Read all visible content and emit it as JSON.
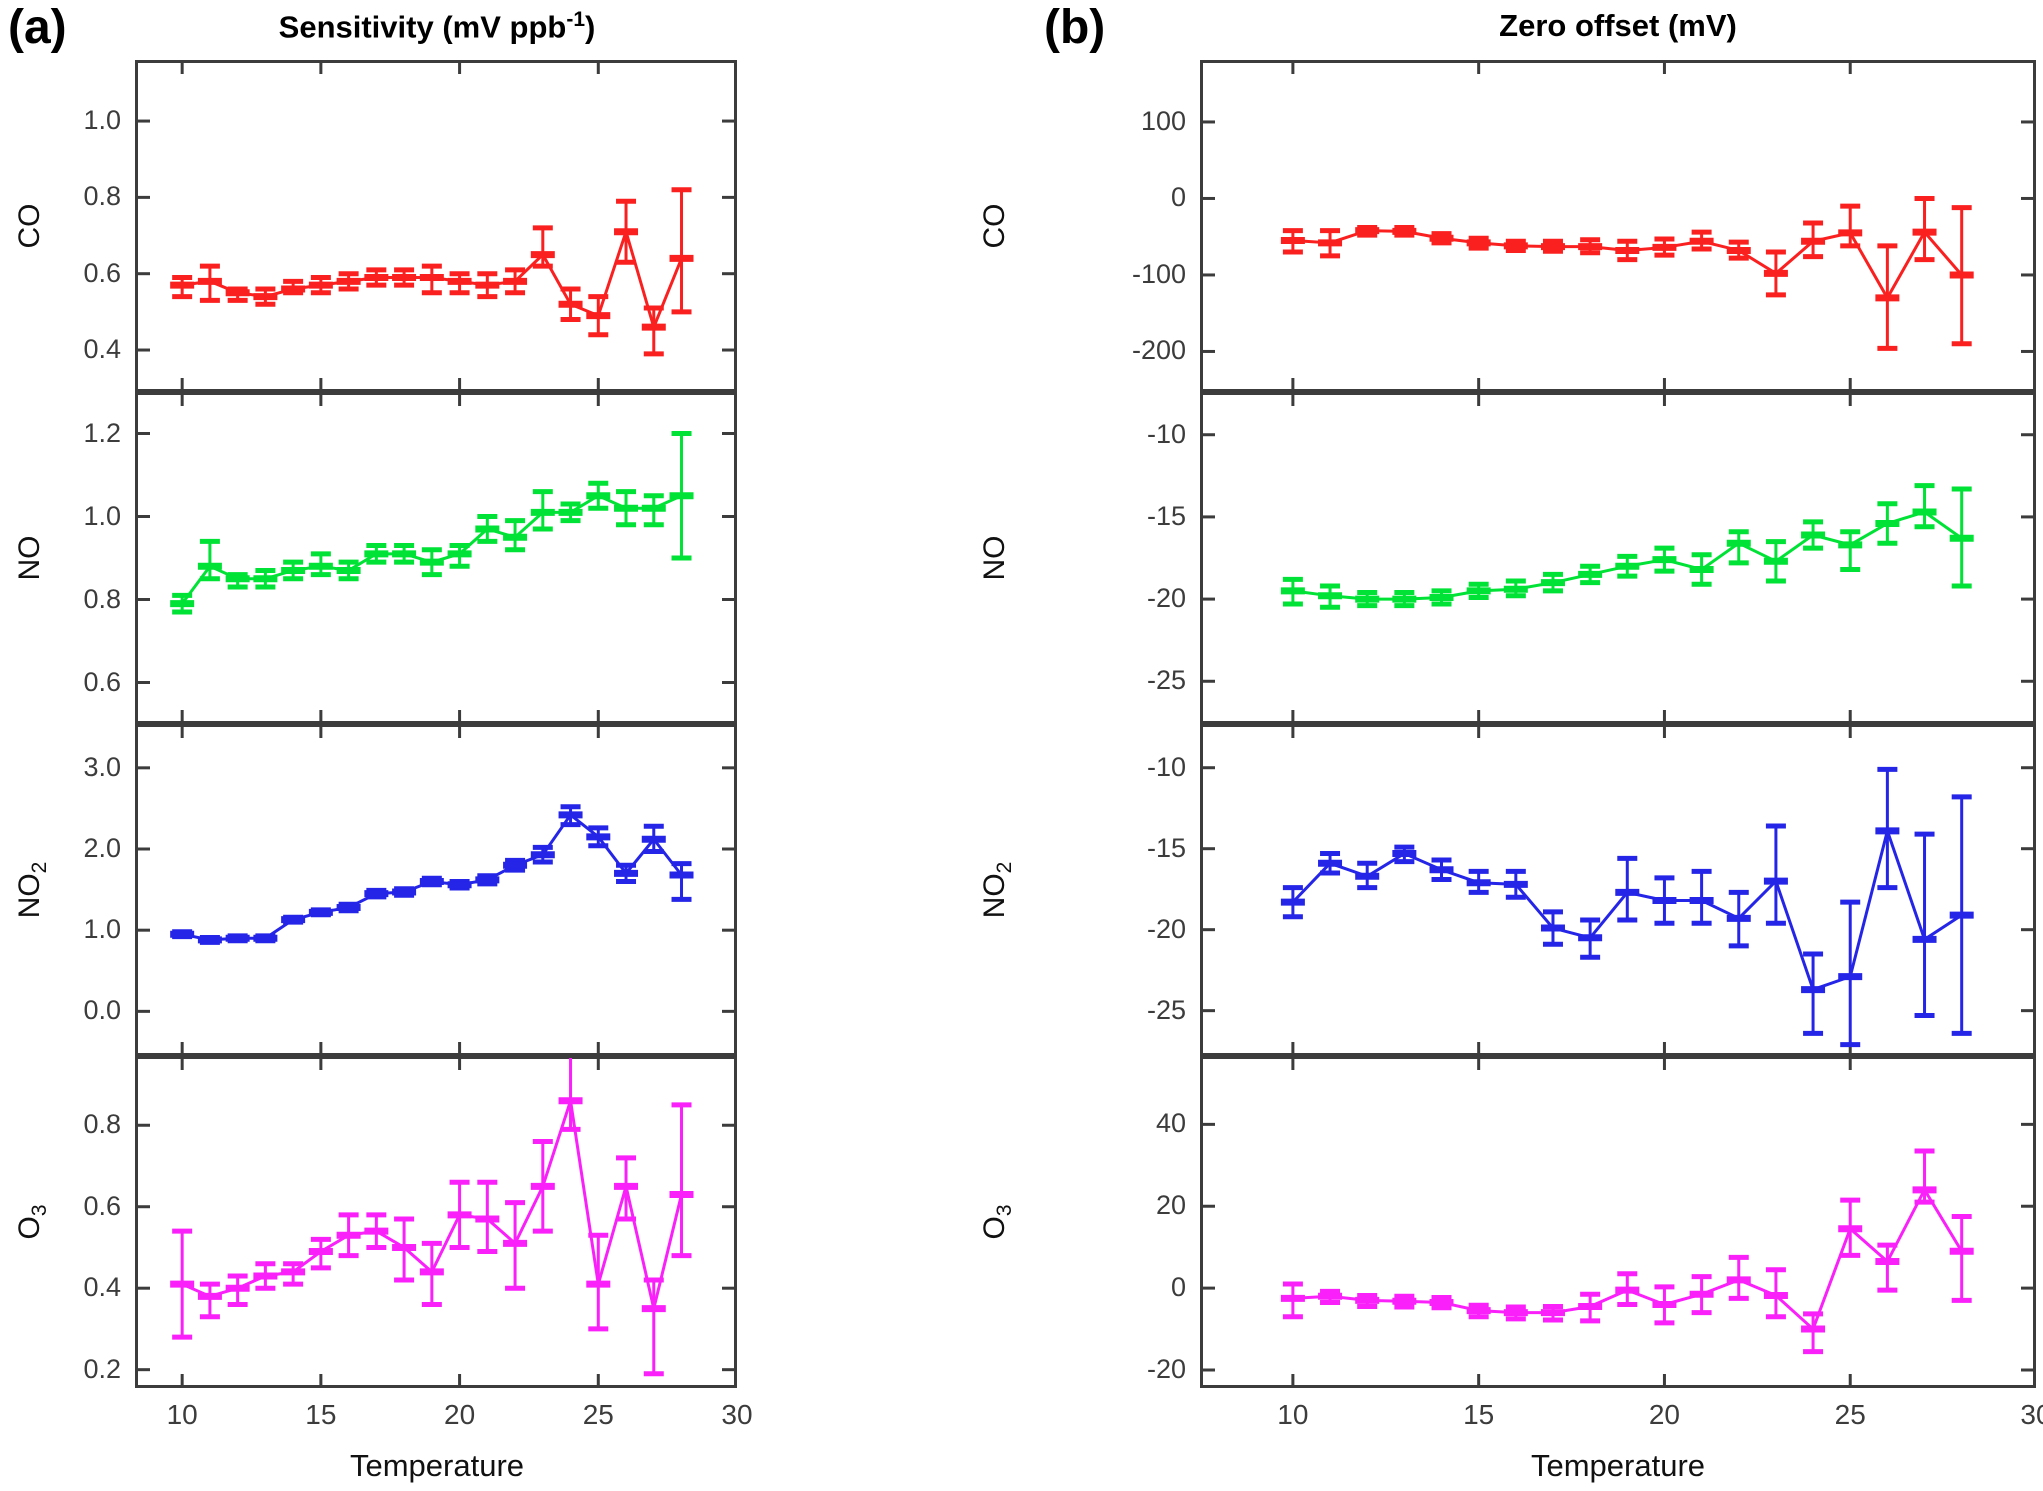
{
  "figure": {
    "background": "#ffffff",
    "x_axis": {
      "ticks": [
        10,
        15,
        20,
        25,
        30
      ],
      "tick_labels": [
        "10",
        "15",
        "20",
        "25",
        "30"
      ]
    }
  },
  "chart_data": [
    {
      "type": "line",
      "key": "sensitivity",
      "panel_label": "(a)",
      "title": {
        "main": "Sensitivity (mV ppb",
        "sup": "-1",
        "end": ")"
      },
      "xlabel": "Temperature",
      "x_values": [
        10,
        11,
        12,
        13,
        14,
        15,
        16,
        17,
        18,
        19,
        20,
        21,
        22,
        23,
        24,
        25,
        26,
        27,
        28
      ],
      "subplots": [
        {
          "species": "CO",
          "species_sub": "",
          "color": "#fb2020",
          "ylim": [
            0.29,
            1.16
          ],
          "ytick_values": [
            1.0,
            0.8,
            0.6,
            0.4
          ],
          "ytick_labels": [
            "1.0",
            "0.8",
            "0.6",
            "0.4"
          ],
          "y": [
            0.57,
            0.58,
            0.55,
            0.54,
            0.56,
            0.57,
            0.58,
            0.59,
            0.59,
            0.59,
            0.58,
            0.57,
            0.58,
            0.65,
            0.52,
            0.49,
            0.71,
            0.46,
            0.64
          ],
          "err_lo": [
            0.54,
            0.53,
            0.53,
            0.52,
            0.55,
            0.55,
            0.56,
            0.57,
            0.57,
            0.55,
            0.55,
            0.54,
            0.55,
            0.62,
            0.48,
            0.44,
            0.63,
            0.39,
            0.5
          ],
          "err_hi": [
            0.59,
            0.62,
            0.56,
            0.56,
            0.58,
            0.59,
            0.6,
            0.61,
            0.61,
            0.62,
            0.6,
            0.6,
            0.61,
            0.72,
            0.56,
            0.54,
            0.79,
            0.51,
            0.82
          ]
        },
        {
          "species": "NO",
          "species_sub": "",
          "color": "#00e235",
          "ylim": [
            0.5,
            1.3
          ],
          "ytick_values": [
            1.2,
            1.0,
            0.8,
            0.6
          ],
          "ytick_labels": [
            "1.2",
            "1.0",
            "0.8",
            "0.6"
          ],
          "y": [
            0.79,
            0.88,
            0.85,
            0.85,
            0.87,
            0.88,
            0.87,
            0.91,
            0.91,
            0.89,
            0.91,
            0.97,
            0.95,
            1.01,
            1.01,
            1.05,
            1.02,
            1.02,
            1.05
          ],
          "err_lo": [
            0.77,
            0.85,
            0.83,
            0.83,
            0.85,
            0.86,
            0.85,
            0.89,
            0.89,
            0.86,
            0.88,
            0.94,
            0.92,
            0.97,
            0.99,
            1.02,
            0.98,
            0.98,
            0.9
          ],
          "err_hi": [
            0.81,
            0.94,
            0.86,
            0.87,
            0.89,
            0.91,
            0.89,
            0.93,
            0.93,
            0.92,
            0.93,
            1.0,
            0.99,
            1.06,
            1.03,
            1.08,
            1.06,
            1.05,
            1.2
          ]
        },
        {
          "species": "NO",
          "species_sub": "2",
          "color": "#2525e8",
          "ylim": [
            -0.55,
            3.54
          ],
          "ytick_values": [
            3.0,
            2.0,
            1.0,
            0.0
          ],
          "ytick_labels": [
            "3.0",
            "2.0",
            "1.0",
            "0.0"
          ],
          "y": [
            0.95,
            0.88,
            0.9,
            0.9,
            1.13,
            1.22,
            1.28,
            1.45,
            1.47,
            1.6,
            1.56,
            1.62,
            1.8,
            1.93,
            2.42,
            2.15,
            1.7,
            2.12,
            1.68
          ],
          "err_lo": [
            0.92,
            0.85,
            0.87,
            0.87,
            1.1,
            1.19,
            1.24,
            1.41,
            1.43,
            1.56,
            1.52,
            1.57,
            1.74,
            1.84,
            2.3,
            2.04,
            1.6,
            1.97,
            1.38
          ],
          "err_hi": [
            0.98,
            0.91,
            0.93,
            0.93,
            1.16,
            1.25,
            1.32,
            1.49,
            1.51,
            1.64,
            1.6,
            1.67,
            1.86,
            2.02,
            2.52,
            2.26,
            1.8,
            2.28,
            1.82
          ]
        },
        {
          "species": "O",
          "species_sub": "3",
          "color": "#fa20fa",
          "ylim": [
            0.155,
            0.97
          ],
          "ytick_values": [
            0.8,
            0.6,
            0.4,
            0.2
          ],
          "ytick_labels": [
            "0.8",
            "0.6",
            "0.4",
            "0.2"
          ],
          "y": [
            0.41,
            0.38,
            0.4,
            0.43,
            0.44,
            0.49,
            0.53,
            0.54,
            0.5,
            0.44,
            0.58,
            0.57,
            0.51,
            0.65,
            0.86,
            0.41,
            0.65,
            0.35,
            0.63
          ],
          "err_lo": [
            0.28,
            0.33,
            0.36,
            0.4,
            0.41,
            0.45,
            0.48,
            0.5,
            0.42,
            0.36,
            0.5,
            0.49,
            0.4,
            0.54,
            0.79,
            0.3,
            0.57,
            0.19,
            0.48
          ],
          "err_hi": [
            0.54,
            0.41,
            0.43,
            0.46,
            0.46,
            0.52,
            0.58,
            0.58,
            0.57,
            0.51,
            0.66,
            0.66,
            0.61,
            0.76,
            0.98,
            0.53,
            0.72,
            0.42,
            0.85
          ]
        }
      ]
    },
    {
      "type": "line",
      "key": "zero-offset",
      "panel_label": "(b)",
      "title": {
        "main": "Zero offset (mV)",
        "sup": "",
        "end": ""
      },
      "xlabel": "Temperature",
      "x_values": [
        10,
        11,
        12,
        13,
        14,
        15,
        16,
        17,
        18,
        19,
        20,
        21,
        22,
        23,
        24,
        25,
        26,
        27,
        28
      ],
      "subplots": [
        {
          "species": "CO",
          "species_sub": "",
          "color": "#fb2020",
          "ylim": [
            -253,
            181
          ],
          "ytick_values": [
            100,
            0,
            -100,
            -200
          ],
          "ytick_labels": [
            "100",
            "0",
            "-100",
            "-200"
          ],
          "y": [
            -55,
            -58,
            -42,
            -43,
            -52,
            -58,
            -62,
            -63,
            -63,
            -68,
            -64,
            -56,
            -68,
            -98,
            -56,
            -45,
            -130,
            -44,
            -100
          ],
          "err_lo": [
            -70,
            -75,
            -48,
            -48,
            -58,
            -65,
            -68,
            -69,
            -71,
            -80,
            -74,
            -66,
            -78,
            -126,
            -76,
            -62,
            -196,
            -80,
            -190
          ],
          "err_hi": [
            -42,
            -42,
            -38,
            -38,
            -46,
            -52,
            -56,
            -56,
            -54,
            -56,
            -53,
            -44,
            -57,
            -70,
            -32,
            -10,
            -62,
            0,
            -12
          ]
        },
        {
          "species": "NO",
          "species_sub": "",
          "color": "#00e235",
          "ylim": [
            -27.6,
            -7.4
          ],
          "ytick_values": [
            -10,
            -15,
            -20,
            -25
          ],
          "ytick_labels": [
            "-10",
            "-15",
            "-20",
            "-25"
          ],
          "y": [
            -19.5,
            -19.8,
            -20.0,
            -20.0,
            -19.9,
            -19.5,
            -19.4,
            -19.0,
            -18.5,
            -18.0,
            -17.6,
            -18.2,
            -16.6,
            -17.7,
            -16.1,
            -16.7,
            -15.4,
            -14.7,
            -16.3
          ],
          "err_lo": [
            -20.3,
            -20.5,
            -20.4,
            -20.4,
            -20.3,
            -19.9,
            -19.8,
            -19.5,
            -19.0,
            -18.6,
            -18.3,
            -19.1,
            -17.8,
            -18.9,
            -16.9,
            -18.2,
            -16.6,
            -15.6,
            -19.2
          ],
          "err_hi": [
            -18.8,
            -19.2,
            -19.6,
            -19.6,
            -19.5,
            -19.1,
            -18.9,
            -18.5,
            -18.0,
            -17.4,
            -16.9,
            -17.3,
            -15.9,
            -16.5,
            -15.3,
            -15.9,
            -14.2,
            -13.1,
            -13.3
          ]
        },
        {
          "species": "NO",
          "species_sub": "2",
          "color": "#2525e8",
          "ylim": [
            -27.8,
            -7.3
          ],
          "ytick_values": [
            -10,
            -15,
            -20,
            -25
          ],
          "ytick_labels": [
            "-10",
            "-15",
            "-20",
            "-25"
          ],
          "y": [
            -18.3,
            -15.9,
            -16.7,
            -15.3,
            -16.3,
            -17.1,
            -17.2,
            -19.9,
            -20.5,
            -17.7,
            -18.2,
            -18.2,
            -19.3,
            -17.0,
            -23.7,
            -22.9,
            -13.9,
            -20.6,
            -19.1
          ],
          "err_lo": [
            -19.2,
            -16.5,
            -17.4,
            -15.8,
            -16.9,
            -17.7,
            -18.0,
            -20.9,
            -21.7,
            -19.4,
            -19.6,
            -19.6,
            -21.0,
            -19.6,
            -26.4,
            -27.1,
            -17.4,
            -25.3,
            -26.4
          ],
          "err_hi": [
            -17.4,
            -15.3,
            -15.9,
            -14.9,
            -15.7,
            -16.4,
            -16.4,
            -18.9,
            -19.4,
            -15.6,
            -16.8,
            -16.4,
            -17.7,
            -13.6,
            -21.5,
            -18.3,
            -10.1,
            -14.1,
            -11.8
          ]
        },
        {
          "species": "O",
          "species_sub": "3",
          "color": "#fa20fa",
          "ylim": [
            -24.4,
            56.7
          ],
          "ytick_values": [
            40,
            20,
            0,
            -20
          ],
          "ytick_labels": [
            "40",
            "20",
            "0",
            "-20"
          ],
          "y": [
            -2.5,
            -2.0,
            -3.0,
            -3.2,
            -3.5,
            -5.5,
            -6.0,
            -6.0,
            -4.5,
            -0.5,
            -4.0,
            -1.5,
            2.0,
            -1.8,
            -10.0,
            14.5,
            6.5,
            24.0,
            9.0
          ],
          "err_lo": [
            -7.0,
            -3.5,
            -4.5,
            -4.6,
            -4.8,
            -7.0,
            -7.5,
            -7.8,
            -8.0,
            -4.0,
            -8.5,
            -6.0,
            -2.5,
            -7.0,
            -15.5,
            8.0,
            -0.5,
            21.0,
            -3.0
          ],
          "err_hi": [
            1.0,
            -0.8,
            -1.8,
            -2.0,
            -2.3,
            -4.2,
            -4.6,
            -4.5,
            -1.5,
            3.5,
            0.3,
            2.8,
            7.5,
            4.5,
            -6.3,
            21.5,
            10.5,
            33.5,
            17.5
          ]
        }
      ]
    }
  ]
}
